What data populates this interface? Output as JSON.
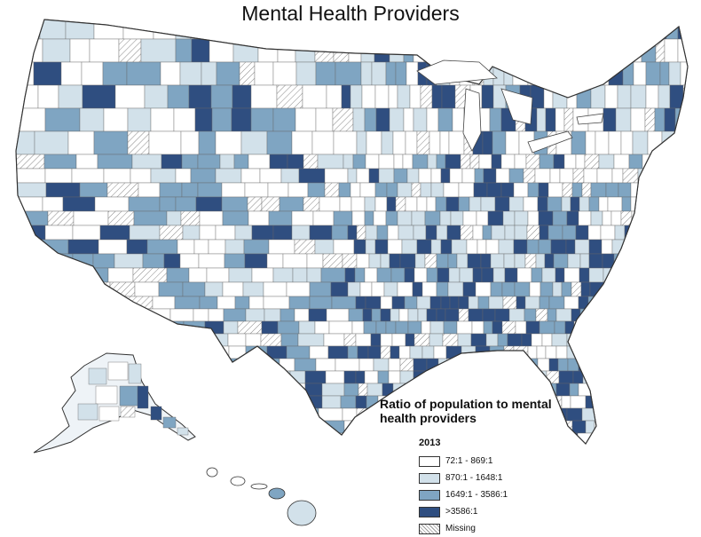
{
  "title": "Mental Health Providers",
  "legend": {
    "title_line1": "Ratio of population to mental",
    "title_line2": "health providers",
    "year": "2013",
    "items": [
      {
        "label": "72:1 - 869:1",
        "color": "#ffffff",
        "pattern": false
      },
      {
        "label": "870:1 - 1648:1",
        "color": "#d2e1ea",
        "pattern": false
      },
      {
        "label": "1649:1 - 3586:1",
        "color": "#7fa5c2",
        "pattern": false
      },
      {
        "label": ">3586:1",
        "color": "#2f4e80",
        "pattern": false
      },
      {
        "label": "Missing",
        "color": "#ffffff",
        "pattern": true
      }
    ]
  },
  "map": {
    "region": "United States counties",
    "border_color": "#555555",
    "water_color": "#ffffff"
  }
}
